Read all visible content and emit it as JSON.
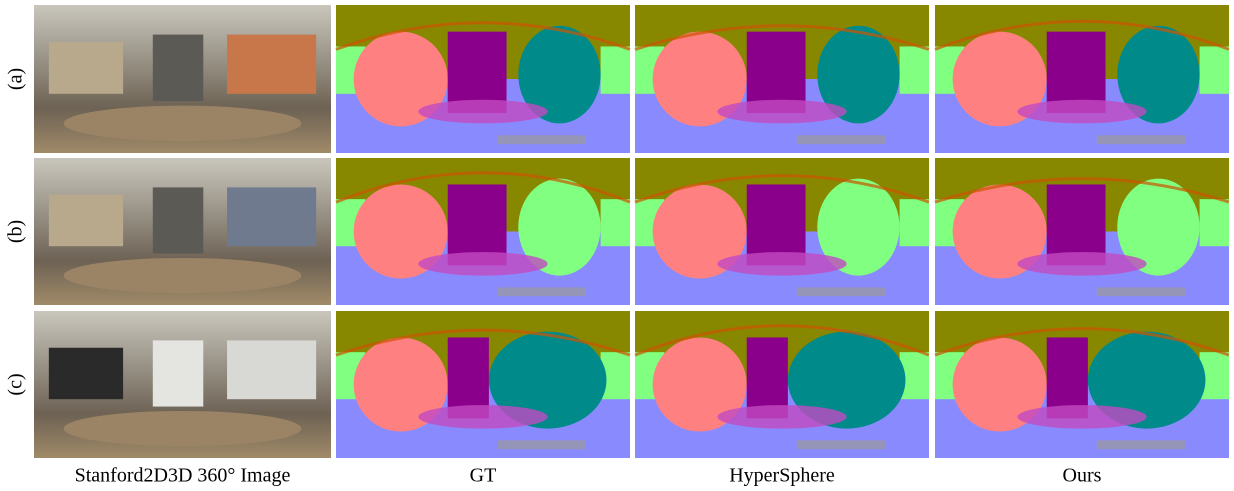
{
  "row_labels": [
    "(a)",
    "(b)",
    "(c)"
  ],
  "column_labels": [
    "Stanford2D3D 360° Image",
    "GT",
    "HyperSphere",
    "Ours"
  ]
}
